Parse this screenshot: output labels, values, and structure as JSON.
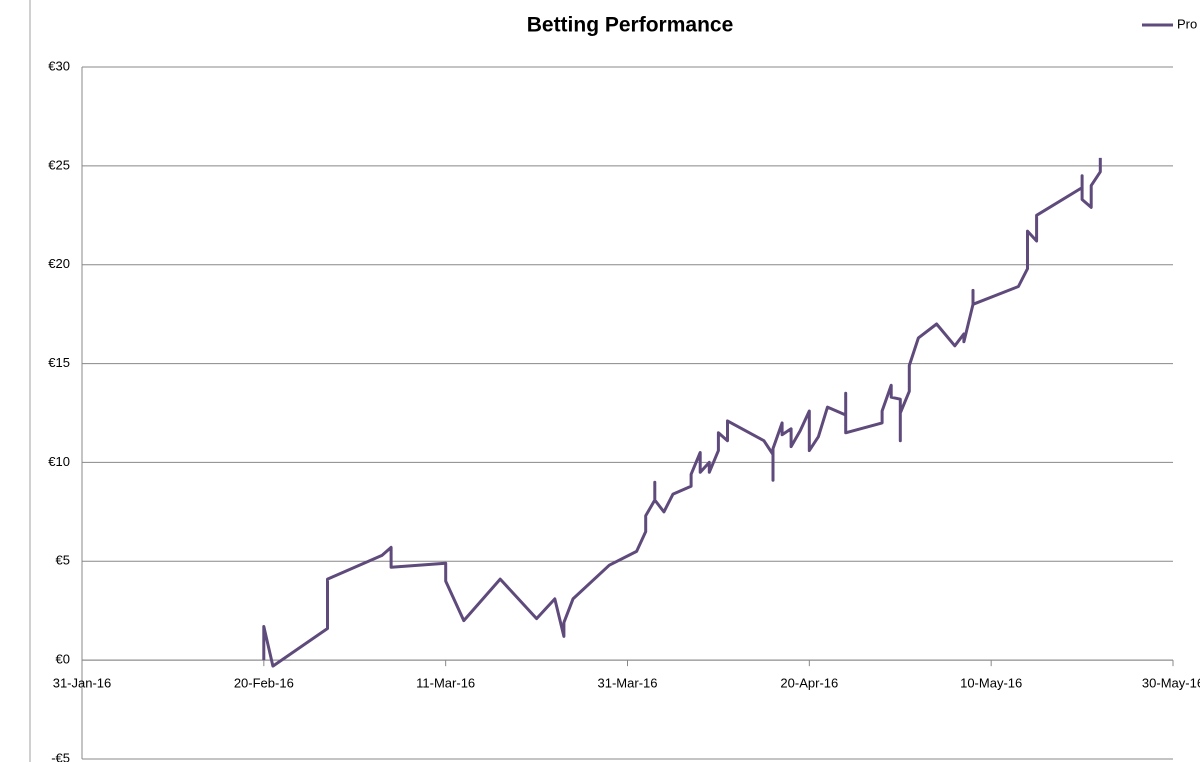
{
  "chart_data": {
    "type": "line",
    "title": "Betting Performance",
    "legend": "top-right",
    "grid": true,
    "xlim": [
      "2016-01-31",
      "2016-05-30"
    ],
    "xticks": [
      {
        "value": "2016-01-31",
        "label": "31-Jan-16"
      },
      {
        "value": "2016-02-20",
        "label": "20-Feb-16"
      },
      {
        "value": "2016-03-11",
        "label": "11-Mar-16"
      },
      {
        "value": "2016-03-31",
        "label": "31-Mar-16"
      },
      {
        "value": "2016-04-20",
        "label": "20-Apr-16"
      },
      {
        "value": "2016-05-10",
        "label": "10-May-16"
      },
      {
        "value": "2016-05-30",
        "label": "30-May-16"
      }
    ],
    "ylim": [
      -5,
      30
    ],
    "yticks": [
      {
        "value": -5,
        "label": "-€5"
      },
      {
        "value": 0,
        "label": "€0"
      },
      {
        "value": 5,
        "label": "€5"
      },
      {
        "value": 10,
        "label": "€10"
      },
      {
        "value": 15,
        "label": "€15"
      },
      {
        "value": 20,
        "label": "€20"
      },
      {
        "value": 25,
        "label": "€25"
      },
      {
        "value": 30,
        "label": "€30"
      }
    ],
    "x": [
      "2016-02-20",
      "2016-02-20",
      "2016-02-21",
      "2016-02-27",
      "2016-02-27",
      "2016-03-04",
      "2016-03-05",
      "2016-03-05",
      "2016-03-11",
      "2016-03-11",
      "2016-03-13",
      "2016-03-17",
      "2016-03-21",
      "2016-03-23",
      "2016-03-24",
      "2016-03-24",
      "2016-03-25",
      "2016-03-29",
      "2016-04-01",
      "2016-04-02",
      "2016-04-02",
      "2016-04-03",
      "2016-04-03",
      "2016-04-03",
      "2016-04-04",
      "2016-04-05",
      "2016-04-07",
      "2016-04-07",
      "2016-04-08",
      "2016-04-08",
      "2016-04-09",
      "2016-04-09",
      "2016-04-10",
      "2016-04-10",
      "2016-04-11",
      "2016-04-11",
      "2016-04-15",
      "2016-04-16",
      "2016-04-16",
      "2016-04-16",
      "2016-04-17",
      "2016-04-17",
      "2016-04-18",
      "2016-04-18",
      "2016-04-19",
      "2016-04-20",
      "2016-04-20",
      "2016-04-21",
      "2016-04-22",
      "2016-04-24",
      "2016-04-24",
      "2016-04-24",
      "2016-04-28",
      "2016-04-28",
      "2016-04-29",
      "2016-04-29",
      "2016-04-30",
      "2016-04-30",
      "2016-04-30",
      "2016-05-01",
      "2016-05-01",
      "2016-05-02",
      "2016-05-04",
      "2016-05-06",
      "2016-05-07",
      "2016-05-07",
      "2016-05-08",
      "2016-05-08",
      "2016-05-08",
      "2016-05-13",
      "2016-05-14",
      "2016-05-14",
      "2016-05-15",
      "2016-05-15",
      "2016-05-20",
      "2016-05-20",
      "2016-05-20",
      "2016-05-21",
      "2016-05-21",
      "2016-05-22",
      "2016-05-22"
    ],
    "series": [
      {
        "name": "Pro",
        "color": "#5f4a7c",
        "values": [
          0,
          1.7,
          -0.3,
          1.6,
          4.1,
          5.3,
          5.7,
          4.7,
          4.9,
          4.0,
          2.0,
          4.1,
          2.1,
          3.1,
          1.2,
          1.9,
          3.1,
          4.8,
          5.5,
          6.5,
          7.3,
          8.1,
          9.0,
          8.1,
          7.5,
          8.4,
          8.8,
          9.4,
          10.5,
          9.5,
          10.0,
          9.5,
          10.6,
          11.5,
          11.1,
          12.1,
          11.1,
          10.4,
          9.1,
          10.7,
          12.0,
          11.4,
          11.7,
          10.8,
          11.6,
          12.6,
          10.6,
          11.3,
          12.8,
          12.4,
          13.5,
          11.5,
          12.0,
          12.6,
          13.9,
          13.3,
          13.2,
          11.1,
          12.5,
          13.6,
          14.9,
          16.3,
          17.0,
          15.9,
          16.5,
          16.1,
          18.0,
          18.7,
          18.0,
          18.9,
          19.8,
          21.7,
          21.2,
          22.5,
          23.9,
          24.5,
          23.3,
          22.9,
          24.0,
          24.7,
          25.4
        ]
      }
    ]
  }
}
